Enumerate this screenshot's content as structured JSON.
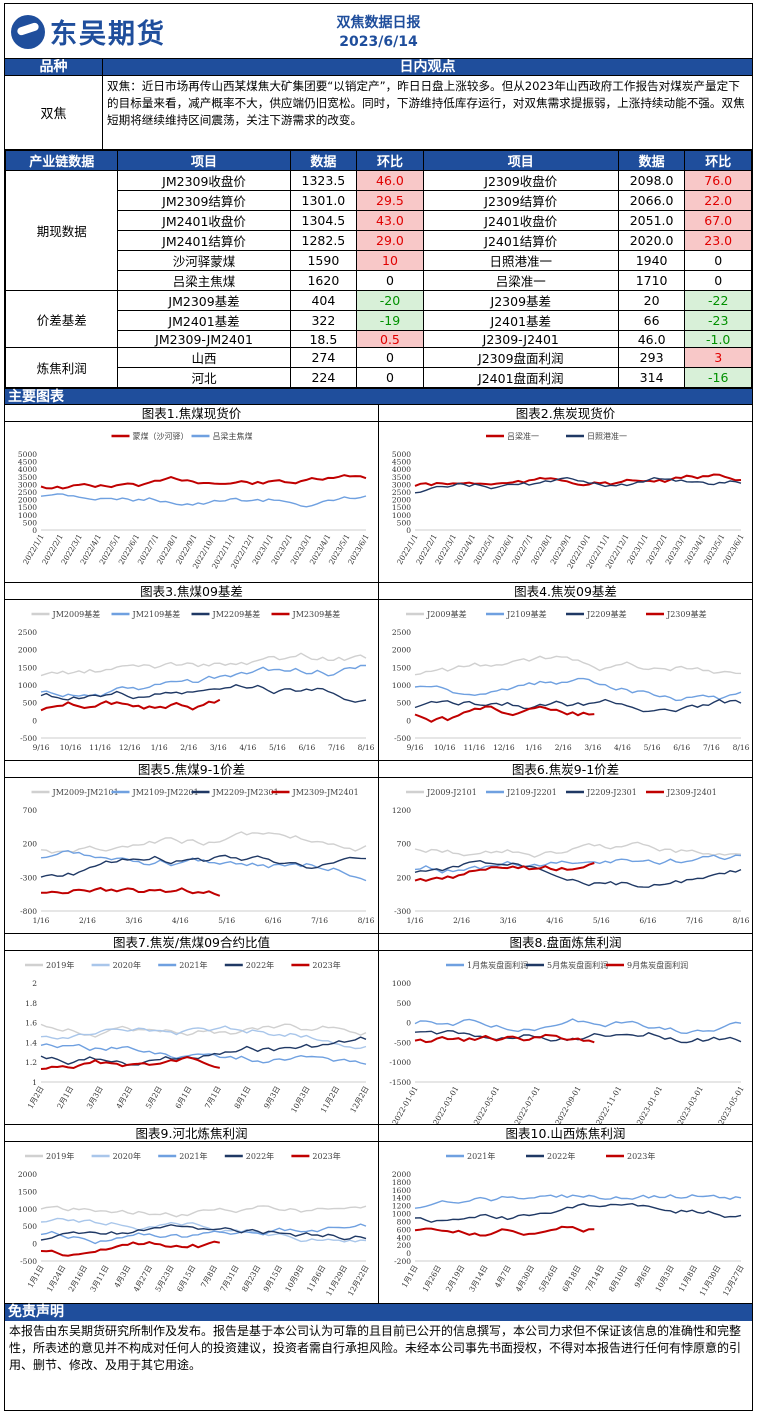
{
  "header": {
    "logo_text": "东吴期货",
    "title": "双焦数据日报",
    "date": "2023/6/14"
  },
  "section_bar": {
    "col1": "品种",
    "col2": "日内观点"
  },
  "view": {
    "label": "双焦",
    "text": "双焦：近日市场再传山西某煤焦大矿集团要“以销定产”，昨日日盘上涨较多。但从2023年山西政府工作报告对煤炭产量定下的目标量来看，减产概率不大，供应端仍旧宽松。同时，下游维持低库存运行，对双焦需求提振弱，上涨持续动能不强。双焦短期将继续维持区间震荡，关注下游需求的改变。"
  },
  "table": {
    "headers": [
      "产业链数据",
      "项目",
      "数据",
      "环比",
      "项目",
      "数据",
      "环比"
    ],
    "groups": [
      "期现数据",
      "价差基差",
      "炼焦利润"
    ],
    "rows": [
      [
        "JM2309收盘价",
        "1323.5",
        "46.0",
        "J2309收盘价",
        "2098.0",
        "76.0"
      ],
      [
        "JM2309结算价",
        "1301.0",
        "29.5",
        "J2309结算价",
        "2066.0",
        "22.0"
      ],
      [
        "JM2401收盘价",
        "1304.5",
        "43.0",
        "J2401收盘价",
        "2051.0",
        "67.0"
      ],
      [
        "JM2401结算价",
        "1282.5",
        "29.0",
        "J2401结算价",
        "2020.0",
        "23.0"
      ],
      [
        "沙河驿蒙煤",
        "1590",
        "10",
        "日照港准一",
        "1940",
        "0"
      ],
      [
        "吕梁主焦煤",
        "1620",
        "0",
        "吕梁准一",
        "1710",
        "0"
      ],
      [
        "JM2309基差",
        "404",
        "-20",
        "J2309基差",
        "20",
        "-22"
      ],
      [
        "JM2401基差",
        "322",
        "-19",
        "J2401基差",
        "66",
        "-23"
      ],
      [
        "JM2309-JM2401",
        "18.5",
        "0.5",
        "J2309-J2401",
        "46.0",
        "-1.0"
      ],
      [
        "山西",
        "274",
        "0",
        "J2309盘面利润",
        "293",
        "3"
      ],
      [
        "河北",
        "224",
        "0",
        "J2401盘面利润",
        "314",
        "-16"
      ]
    ]
  },
  "charts_bar": "主要图表",
  "charts": [
    {
      "title": "图表1.焦煤现货价",
      "legend": [
        "蒙煤（沙河驿）",
        "吕梁主焦煤"
      ],
      "yticks": [
        "5000",
        "4500",
        "4000",
        "3500",
        "3000",
        "2500",
        "2000",
        "1500",
        "1000",
        "500",
        "0"
      ],
      "xticks": [
        "2022/1/1",
        "2022/2/1",
        "2022/3/1",
        "2022/4/1",
        "2022/5/1",
        "2022/6/1",
        "2022/7/1",
        "2022/8/1",
        "2022/9/1",
        "2022/10/1",
        "2022/11/1",
        "2022/12/1",
        "2023/1/1",
        "2023/2/1",
        "2023/3/1",
        "2023/4/1",
        "2023/5/1",
        "2023/6/1"
      ]
    },
    {
      "title": "图表2.焦炭现货价",
      "legend": [
        "吕梁准一",
        "日照港准一"
      ],
      "yticks": [
        "5000",
        "4500",
        "4000",
        "3500",
        "3000",
        "2500",
        "2000",
        "1500",
        "1000",
        "500",
        "0"
      ],
      "xticks": [
        "2022/1/1",
        "2022/2/1",
        "2022/3/1",
        "2022/4/1",
        "2022/5/1",
        "2022/6/1",
        "2022/7/1",
        "2022/8/1",
        "2022/9/1",
        "2022/10/1",
        "2022/11/1",
        "2022/12/1",
        "2023/1/1",
        "2023/2/1",
        "2023/3/1",
        "2023/4/1",
        "2023/5/1",
        "2023/6/1"
      ]
    },
    {
      "title": "图表3.焦煤09基差",
      "legend": [
        "JM2009基差",
        "JM2109基差",
        "JM2209基差",
        "JM2309基差"
      ],
      "yticks": [
        "2500",
        "2000",
        "1500",
        "1000",
        "500",
        "0",
        "-500"
      ],
      "xticks": [
        "9/16",
        "10/16",
        "11/16",
        "12/16",
        "1/16",
        "2/16",
        "3/16",
        "4/16",
        "5/16",
        "6/16",
        "7/16",
        "8/16"
      ]
    },
    {
      "title": "图表4.焦炭09基差",
      "legend": [
        "J2009基差",
        "J2109基差",
        "J2209基差",
        "J2309基差"
      ],
      "yticks": [
        "2500",
        "2000",
        "1500",
        "1000",
        "500",
        "0",
        "-500"
      ],
      "xticks": [
        "9/16",
        "10/16",
        "11/16",
        "12/16",
        "1/16",
        "2/16",
        "3/16",
        "4/16",
        "5/16",
        "6/16",
        "7/16",
        "8/16"
      ]
    },
    {
      "title": "图表5.焦煤9-1价差",
      "legend": [
        "JM2009-JM2101",
        "JM2109-JM2201",
        "JM2209-JM2301",
        "JM2309-JM2401"
      ],
      "yticks": [
        "700",
        "200",
        "-300",
        "-800"
      ],
      "xticks": [
        "1/16",
        "2/16",
        "3/16",
        "4/16",
        "5/16",
        "6/16",
        "7/16",
        "8/16"
      ]
    },
    {
      "title": "图表6.焦炭9-1价差",
      "legend": [
        "J2009-J2101",
        "J2109-J2201",
        "J2209-J2301",
        "J2309-J2401"
      ],
      "yticks": [
        "1200",
        "700",
        "200",
        "-300"
      ],
      "xticks": [
        "1/16",
        "2/16",
        "3/16",
        "4/16",
        "5/16",
        "6/16",
        "7/16",
        "8/16"
      ]
    },
    {
      "title": "图表7.焦炭/焦煤09合约比值",
      "legend": [
        "2019年",
        "2020年",
        "2021年",
        "2022年",
        "2023年"
      ],
      "yticks": [
        "2",
        "1.8",
        "1.6",
        "1.4",
        "1.2",
        "1"
      ],
      "xticks": [
        "1月2日",
        "2月1日",
        "3月3日",
        "4月2日",
        "5月2日",
        "6月1日",
        "7月1日",
        "8月1日",
        "9月3日",
        "10月3日",
        "11月2日",
        "12月2日"
      ]
    },
    {
      "title": "图表8.盘面炼焦利润",
      "legend": [
        "1月焦炭盘面利润",
        "5月焦炭盘面利润",
        "9月焦炭盘面利润"
      ],
      "yticks": [
        "1000",
        "500",
        "0",
        "-500",
        "-1000",
        "-1500"
      ],
      "xticks": [
        "2022-01-01",
        "2022-03-01",
        "2022-05-01",
        "2022-07-01",
        "2022-09-01",
        "2022-11-01",
        "2023-01-01",
        "2023-03-01",
        "2023-05-01"
      ]
    },
    {
      "title": "图表9.河北炼焦利润",
      "legend": [
        "2019年",
        "2020年",
        "2021年",
        "2022年",
        "2023年"
      ],
      "yticks": [
        "2000",
        "1500",
        "1000",
        "500",
        "0",
        "-500"
      ],
      "xticks": [
        "1月1日",
        "1月24日",
        "2月16日",
        "3月11日",
        "4月3日",
        "4月27日",
        "5月23日",
        "6月15日",
        "7月8日",
        "7月31日",
        "8月23日",
        "9月15日",
        "10月9日",
        "11月6日",
        "11月29日",
        "12月22日"
      ]
    },
    {
      "title": "图表10.山西炼焦利润",
      "legend": [
        "2021年",
        "2022年",
        "2023年"
      ],
      "yticks": [
        "2000",
        "1800",
        "1600",
        "1400",
        "1200",
        "1000",
        "800",
        "600",
        "400",
        "200",
        "0",
        "-200"
      ],
      "xticks": [
        "1月1日",
        "1月26日",
        "2月19日",
        "3月14日",
        "4月7日",
        "4月30日",
        "5月26日",
        "6月18日",
        "7月14日",
        "8月10日",
        "9月6日",
        "10月3日",
        "11月8日",
        "11月30日",
        "12月27日"
      ]
    }
  ],
  "colors": {
    "brand": "#1f4e9c",
    "red": "#c00000",
    "navy": "#1f3864",
    "light": "#6fa0e0",
    "grey": "#d0d0d0",
    "pale": "#a9c6ea"
  },
  "disclaimer": {
    "title": "免责声明",
    "text": "本报告由东吴期货研究所制作及发布。报告是基于本公司认为可靠的且目前已公开的信息撰写，本公司力求但不保证该信息的准确性和完整性，所表述的意见并不构成对任何人的投资建议，投资者需自行承担风险。未经本公司事先书面授权，不得对本报告进行任何有悖原意的引用、删节、修改、及用于其它用途。"
  }
}
